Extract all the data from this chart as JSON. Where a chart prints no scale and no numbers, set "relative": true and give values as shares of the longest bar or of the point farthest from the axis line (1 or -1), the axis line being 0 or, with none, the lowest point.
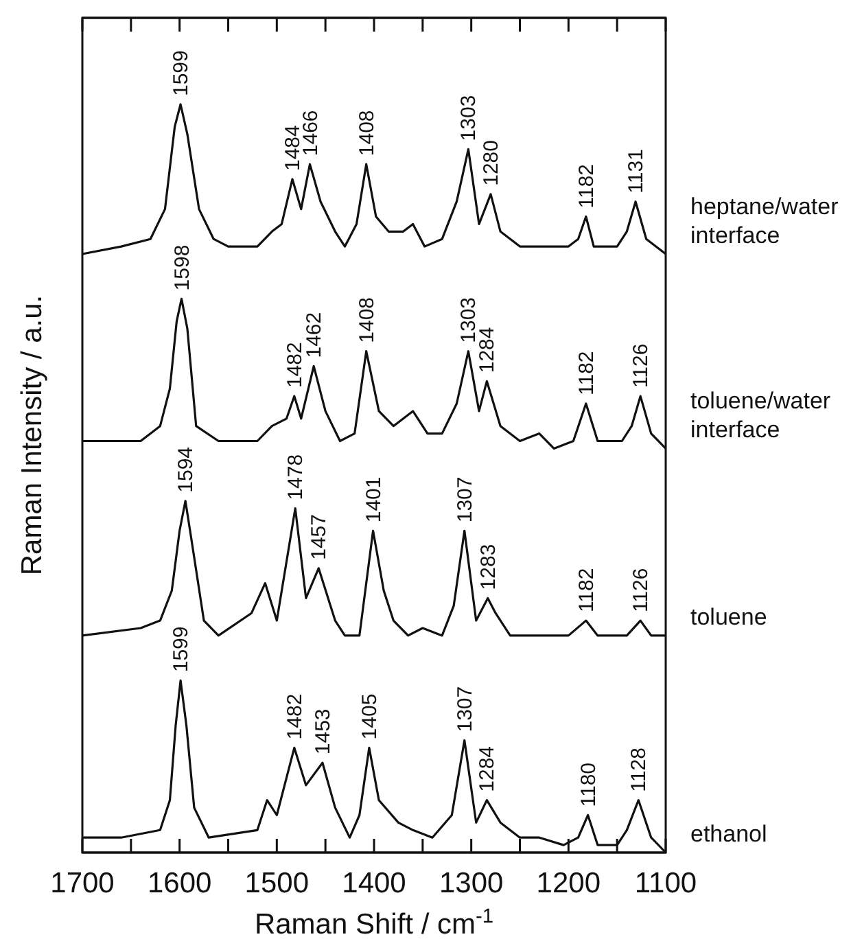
{
  "chart_data": {
    "type": "line",
    "relative": true,
    "xlabel": "Raman Shift / cm$^{-1}$",
    "ylabel": "Raman Intensity / a.u.",
    "xlim": [
      1700,
      1100
    ],
    "xticks": [
      1700,
      {
        "value": 1650,
        "label": null
      },
      1600,
      {
        "value": 1550,
        "label": null
      },
      1500,
      {
        "value": 1450,
        "label": null
      },
      1400,
      {
        "value": 1350,
        "label": null
      },
      1300,
      {
        "value": 1250,
        "label": null
      },
      1200,
      {
        "value": 1150,
        "label": null
      },
      1100
    ],
    "grid": false,
    "legend": false,
    "marker": "none",
    "line_style": "solid",
    "series": [
      {
        "name": "heptane/water interface",
        "color": "#111111",
        "x": [
          1700,
          1660,
          1630,
          1615,
          1605,
          1599,
          1592,
          1580,
          1565,
          1550,
          1520,
          1505,
          1495,
          1484,
          1475,
          1466,
          1455,
          1440,
          1430,
          1418,
          1408,
          1398,
          1385,
          1370,
          1360,
          1348,
          1330,
          1315,
          1303,
          1292,
          1280,
          1270,
          1250,
          1220,
          1200,
          1190,
          1182,
          1174,
          1150,
          1140,
          1131,
          1120,
          1100
        ],
        "values": [
          0.8,
          0.81,
          0.82,
          0.86,
          0.97,
          1.0,
          0.96,
          0.86,
          0.82,
          0.81,
          0.81,
          0.83,
          0.84,
          0.9,
          0.86,
          0.92,
          0.87,
          0.83,
          0.81,
          0.84,
          0.92,
          0.85,
          0.83,
          0.83,
          0.84,
          0.81,
          0.82,
          0.87,
          0.94,
          0.84,
          0.88,
          0.83,
          0.81,
          0.81,
          0.81,
          0.82,
          0.85,
          0.81,
          0.81,
          0.83,
          0.87,
          0.82,
          0.8
        ]
      },
      {
        "name": "toluene/water interface",
        "color": "#111111",
        "x": [
          1700,
          1640,
          1620,
          1610,
          1603,
          1598,
          1592,
          1583,
          1560,
          1520,
          1505,
          1490,
          1482,
          1475,
          1462,
          1450,
          1435,
          1420,
          1408,
          1395,
          1380,
          1360,
          1345,
          1330,
          1315,
          1303,
          1292,
          1284,
          1270,
          1250,
          1230,
          1215,
          1195,
          1182,
          1170,
          1145,
          1135,
          1126,
          1115,
          1100
        ],
        "values": [
          0.55,
          0.55,
          0.57,
          0.62,
          0.71,
          0.74,
          0.7,
          0.57,
          0.55,
          0.55,
          0.57,
          0.58,
          0.61,
          0.58,
          0.65,
          0.59,
          0.55,
          0.56,
          0.67,
          0.59,
          0.57,
          0.59,
          0.56,
          0.56,
          0.6,
          0.67,
          0.59,
          0.63,
          0.57,
          0.55,
          0.56,
          0.54,
          0.55,
          0.6,
          0.55,
          0.55,
          0.57,
          0.61,
          0.56,
          0.54
        ]
      },
      {
        "name": "toluene",
        "color": "#111111",
        "x": [
          1700,
          1640,
          1620,
          1608,
          1600,
          1594,
          1588,
          1575,
          1560,
          1526,
          1512,
          1500,
          1481,
          1470,
          1457,
          1440,
          1430,
          1415,
          1401,
          1390,
          1380,
          1365,
          1350,
          1330,
          1318,
          1307,
          1295,
          1283,
          1275,
          1260,
          1240,
          1200,
          1182,
          1170,
          1140,
          1126,
          1115,
          1100
        ],
        "values": [
          0.29,
          0.3,
          0.31,
          0.35,
          0.43,
          0.47,
          0.42,
          0.31,
          0.29,
          0.32,
          0.36,
          0.31,
          0.46,
          0.34,
          0.38,
          0.31,
          0.29,
          0.29,
          0.43,
          0.35,
          0.31,
          0.29,
          0.3,
          0.29,
          0.33,
          0.43,
          0.31,
          0.34,
          0.32,
          0.29,
          0.29,
          0.29,
          0.31,
          0.29,
          0.29,
          0.31,
          0.29,
          0.29
        ]
      },
      {
        "name": "ethanol",
        "color": "#111111",
        "x": [
          1700,
          1660,
          1620,
          1610,
          1604,
          1599,
          1593,
          1585,
          1570,
          1520,
          1510,
          1500,
          1482,
          1470,
          1453,
          1440,
          1425,
          1415,
          1405,
          1395,
          1375,
          1360,
          1340,
          1320,
          1307,
          1295,
          1284,
          1270,
          1250,
          1230,
          1205,
          1190,
          1180,
          1170,
          1150,
          1140,
          1128,
          1115,
          1100
        ],
        "values": [
          0.02,
          0.02,
          0.03,
          0.07,
          0.17,
          0.23,
          0.17,
          0.06,
          0.02,
          0.03,
          0.07,
          0.05,
          0.14,
          0.09,
          0.12,
          0.06,
          0.02,
          0.05,
          0.14,
          0.07,
          0.04,
          0.03,
          0.02,
          0.05,
          0.15,
          0.04,
          0.07,
          0.04,
          0.02,
          0.02,
          0.01,
          0.02,
          0.05,
          0.01,
          0.01,
          0.03,
          0.07,
          0.02,
          0.0
        ]
      }
    ],
    "annotations": [
      {
        "text": "1599",
        "x": 1599,
        "y": 1.0
      },
      {
        "text": "1484",
        "x": 1484,
        "y": 0.9
      },
      {
        "text": "1466",
        "x": 1466,
        "y": 0.92
      },
      {
        "text": "1408",
        "x": 1408,
        "y": 0.92
      },
      {
        "text": "1303",
        "x": 1303,
        "y": 0.94
      },
      {
        "text": "1280",
        "x": 1280,
        "y": 0.88
      },
      {
        "text": "1182",
        "x": 1182,
        "y": 0.85
      },
      {
        "text": "1131",
        "x": 1131,
        "y": 0.87
      },
      {
        "text": "1598",
        "x": 1598,
        "y": 0.74
      },
      {
        "text": "1482",
        "x": 1482,
        "y": 0.61
      },
      {
        "text": "1462",
        "x": 1462,
        "y": 0.65
      },
      {
        "text": "1408",
        "x": 1408,
        "y": 0.67
      },
      {
        "text": "1303",
        "x": 1303,
        "y": 0.67
      },
      {
        "text": "1284",
        "x": 1284,
        "y": 0.63
      },
      {
        "text": "1182",
        "x": 1182,
        "y": 0.6
      },
      {
        "text": "1126",
        "x": 1126,
        "y": 0.61
      },
      {
        "text": "1594",
        "x": 1594,
        "y": 0.47
      },
      {
        "text": "1478",
        "x": 1481,
        "y": 0.46
      },
      {
        "text": "1457",
        "x": 1457,
        "y": 0.38
      },
      {
        "text": "1401",
        "x": 1401,
        "y": 0.43
      },
      {
        "text": "1307",
        "x": 1307,
        "y": 0.43
      },
      {
        "text": "1283",
        "x": 1283,
        "y": 0.34
      },
      {
        "text": "1182",
        "x": 1182,
        "y": 0.31
      },
      {
        "text": "1126",
        "x": 1126,
        "y": 0.31
      },
      {
        "text": "1599",
        "x": 1599,
        "y": 0.23
      },
      {
        "text": "1482",
        "x": 1482,
        "y": 0.14
      },
      {
        "text": "1453",
        "x": 1453,
        "y": 0.12
      },
      {
        "text": "1405",
        "x": 1405,
        "y": 0.14
      },
      {
        "text": "1307",
        "x": 1307,
        "y": 0.15
      },
      {
        "text": "1284",
        "x": 1284,
        "y": 0.07
      },
      {
        "text": "1180",
        "x": 1180,
        "y": 0.05
      },
      {
        "text": "1128",
        "x": 1128,
        "y": 0.07
      }
    ]
  }
}
